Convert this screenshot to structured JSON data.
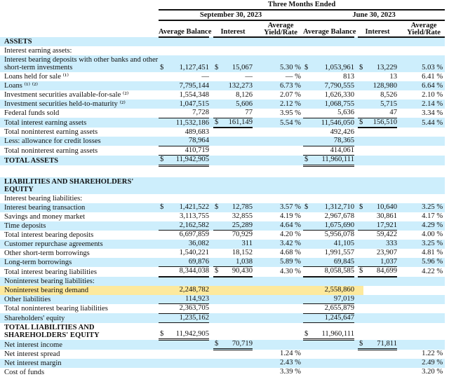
{
  "header": {
    "period_group": "Three Months Ended",
    "periods": [
      "September 30, 2023",
      "June 30, 2023"
    ],
    "columns": [
      "Average Balance",
      "Interest",
      "Average Yield/Rate",
      "Average Balance",
      "Interest",
      "Average Yield/Rate"
    ]
  },
  "colors": {
    "row_shade": "#cdeefc",
    "highlight": "#fde99d"
  },
  "rows": [
    {
      "label": "ASSETS",
      "bold": true,
      "bg": "blue",
      "cells": [
        "",
        "",
        "",
        "",
        "",
        "",
        "",
        "",
        "",
        ""
      ]
    },
    {
      "label": "Interest earning assets:",
      "bg": "white",
      "cells": [
        "",
        "",
        "",
        "",
        "",
        "",
        "",
        "",
        "",
        ""
      ]
    },
    {
      "label": "Interest bearing deposits with other banks and other short-term investments",
      "bg": "blue",
      "cells": [
        "$",
        "1,127,451",
        "$",
        "15,067",
        "5.30 %",
        "$",
        "1,053,961",
        "$",
        "13,229",
        "5.03 %"
      ]
    },
    {
      "label": "Loans held for sale ⁽¹⁾",
      "bg": "white",
      "cells": [
        "",
        "—",
        "",
        "—",
        "— %",
        "",
        "813",
        "",
        "13",
        "6.41 %"
      ]
    },
    {
      "label": "Loans ⁽¹⁾ ⁽²⁾",
      "bg": "blue",
      "cells": [
        "",
        "7,795,144",
        "",
        "132,273",
        "6.73 %",
        "",
        "7,790,555",
        "",
        "128,980",
        "6.64 %"
      ]
    },
    {
      "label": "Investment securities available-for-sale ⁽²⁾",
      "bg": "white",
      "cells": [
        "",
        "1,554,348",
        "",
        "8,126",
        "2.07 %",
        "",
        "1,626,330",
        "",
        "8,526",
        "2.10 %"
      ]
    },
    {
      "label": "Investment securities held-to-maturity ⁽²⁾",
      "bg": "blue",
      "cells": [
        "",
        "1,047,515",
        "",
        "5,606",
        "2.12 %",
        "",
        "1,068,755",
        "",
        "5,715",
        "2.14 %"
      ]
    },
    {
      "label": "Federal funds sold",
      "bg": "white",
      "rule": "single",
      "ruled": [
        1,
        2,
        4,
        5
      ],
      "cells": [
        "",
        "7,728",
        "",
        "77",
        "3.95 %",
        "",
        "5,636",
        "",
        "47",
        "3.34 %"
      ]
    },
    {
      "label": "Total interest earning assets",
      "bg": "blue",
      "rule": "thick",
      "ruled": [
        2,
        5
      ],
      "cells": [
        "",
        "11,532,186",
        "$",
        "161,149",
        "5.54 %",
        "",
        "11,546,050",
        "$",
        "156,510",
        "5.44 %"
      ]
    },
    {
      "label": "Total noninterest earning assets",
      "bg": "white",
      "cells": [
        "",
        "489,683",
        "",
        "",
        "",
        "",
        "492,426",
        "",
        "",
        ""
      ]
    },
    {
      "label": "Less: allowance for credit losses",
      "bg": "blue",
      "rule": "single",
      "ruled": [
        1,
        4
      ],
      "cells": [
        "",
        "78,964",
        "",
        "",
        "",
        "",
        "78,365",
        "",
        "",
        ""
      ]
    },
    {
      "label": "Total noninterest earning assets",
      "bg": "white",
      "rule": "single",
      "ruled": [
        1,
        4
      ],
      "cells": [
        "",
        "410,719",
        "",
        "",
        "",
        "",
        "414,061",
        "",
        "",
        ""
      ]
    },
    {
      "label": "TOTAL ASSETS",
      "bold": true,
      "bg": "blue",
      "rule": "double",
      "ruled": [
        1,
        4
      ],
      "cells": [
        "$",
        "11,942,905",
        "",
        "",
        "",
        "$",
        "11,960,111",
        "",
        "",
        ""
      ]
    },
    {
      "blank": true
    },
    {
      "label": "LIABILITIES AND SHAREHOLDERS' EQUITY",
      "bold": true,
      "bg": "blue",
      "cells": [
        "",
        "",
        "",
        "",
        "",
        "",
        "",
        "",
        "",
        ""
      ]
    },
    {
      "label": "Interest bearing liabilities:",
      "bg": "white",
      "cells": [
        "",
        "",
        "",
        "",
        "",
        "",
        "",
        "",
        "",
        ""
      ]
    },
    {
      "label": "Interest bearing transaction",
      "bg": "blue",
      "cells": [
        "$",
        "1,421,522",
        "$",
        "12,785",
        "3.57 %",
        "$",
        "1,312,710",
        "$",
        "10,640",
        "3.25 %"
      ]
    },
    {
      "label": "Savings and money market",
      "bg": "white",
      "cells": [
        "",
        "3,113,755",
        "",
        "32,855",
        "4.19 %",
        "",
        "2,967,678",
        "",
        "30,861",
        "4.17 %"
      ]
    },
    {
      "label": "Time deposits",
      "bg": "blue",
      "rule": "single",
      "ruled": [
        1,
        2,
        4,
        5
      ],
      "cells": [
        "",
        "2,162,582",
        "",
        "25,289",
        "4.64 %",
        "",
        "1,675,690",
        "",
        "17,921",
        "4.29 %"
      ]
    },
    {
      "label": "Total interest bearing deposits",
      "bg": "white",
      "cells": [
        "",
        "6,697,859",
        "",
        "70,929",
        "4.20 %",
        "",
        "5,956,078",
        "",
        "59,422",
        "4.00 %"
      ]
    },
    {
      "label": "Customer repurchase agreements",
      "bg": "blue",
      "cells": [
        "",
        "36,082",
        "",
        "311",
        "3.42 %",
        "",
        "41,105",
        "",
        "333",
        "3.25 %"
      ]
    },
    {
      "label": "Other short-term borrowings",
      "bg": "white",
      "cells": [
        "",
        "1,540,221",
        "",
        "18,152",
        "4.68 %",
        "",
        "1,991,557",
        "",
        "23,907",
        "4.81 %"
      ]
    },
    {
      "label": "Long-term borrowings",
      "bg": "blue",
      "rule": "single",
      "ruled": [
        1,
        2,
        4,
        5
      ],
      "cells": [
        "",
        "69,876",
        "",
        "1,038",
        "5.89 %",
        "",
        "69,845",
        "",
        "1,037",
        "5.96 %"
      ]
    },
    {
      "label": "Total interest bearing liabilities",
      "bg": "white",
      "rule": "thick",
      "ruled": [
        1,
        2,
        4,
        5
      ],
      "cells": [
        "",
        "8,344,038",
        "$",
        "90,430",
        "4.30 %",
        "",
        "8,058,585",
        "$",
        "84,699",
        "4.22 %"
      ]
    },
    {
      "label": "Noninterest bearing liabilities:",
      "bg": "blue",
      "cells": [
        "",
        "",
        "",
        "",
        "",
        "",
        "",
        "",
        "",
        ""
      ]
    },
    {
      "label": "Noninterest bearing demand",
      "bg": "yellow",
      "cells": [
        "",
        "2,248,782",
        "",
        "",
        "",
        "",
        "2,558,860",
        "",
        "",
        ""
      ]
    },
    {
      "label": "Other liabilities",
      "bg": "blue",
      "rule": "single",
      "ruled": [
        1,
        4
      ],
      "cells": [
        "",
        "114,923",
        "",
        "",
        "",
        "",
        "97,019",
        "",
        "",
        ""
      ]
    },
    {
      "label": "Total noninterest bearing liabilities",
      "bg": "white",
      "rule": "single",
      "ruled": [
        1,
        4
      ],
      "cells": [
        "",
        "2,363,705",
        "",
        "",
        "",
        "",
        "2,655,879",
        "",
        "",
        ""
      ]
    },
    {
      "label": "Shareholders' equity",
      "bg": "blue",
      "rule": "single",
      "ruled": [
        1,
        4
      ],
      "cells": [
        "",
        "1,235,162",
        "",
        "",
        "",
        "",
        "1,245,647",
        "",
        "",
        ""
      ]
    },
    {
      "label": "TOTAL LIABILITIES AND SHAREHOLDERS' EQUITY",
      "bold": true,
      "bg": "white",
      "rule": "double",
      "ruled": [
        1,
        4
      ],
      "cells": [
        "$",
        "11,942,905",
        "",
        "",
        "",
        "$",
        "11,960,111",
        "",
        "",
        ""
      ]
    },
    {
      "label": "Net interest income",
      "bg": "blue",
      "rule": "double",
      "ruled": [
        2,
        5
      ],
      "cells": [
        "",
        "",
        "$",
        "70,719",
        "",
        "",
        "",
        "$",
        "71,811",
        ""
      ]
    },
    {
      "label": "Net interest spread",
      "bg": "white",
      "cells": [
        "",
        "",
        "",
        "",
        "1.24 %",
        "",
        "",
        "",
        "",
        "1.22 %"
      ]
    },
    {
      "label": "Net interest margin",
      "bg": "blue",
      "cells": [
        "",
        "",
        "",
        "",
        "2.43 %",
        "",
        "",
        "",
        "",
        "2.49 %"
      ]
    },
    {
      "label": "Cost of funds",
      "bg": "white",
      "cells": [
        "",
        "",
        "",
        "",
        "3.39 %",
        "",
        "",
        "",
        "",
        "3.20 %"
      ]
    }
  ]
}
